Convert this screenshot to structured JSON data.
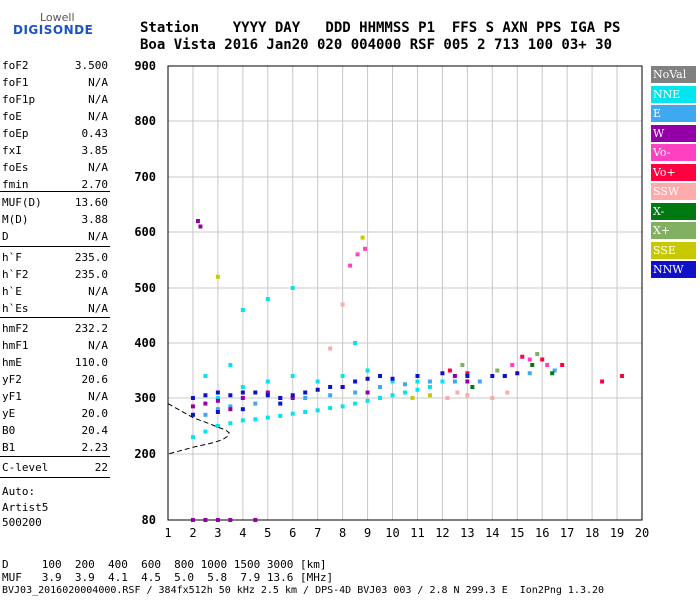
{
  "logo": {
    "top": "Lowell",
    "main": "DIGISONDE"
  },
  "header": {
    "line1": "Station    YYYY DAY   DDD HHMMSS P1  FFS S AXN PPS IGA PS",
    "line2": "Boa Vista 2016 Jan20 020 004000 RSF 005 2 713 100 03+ 30"
  },
  "params": [
    {
      "name": "foF2",
      "value": "3.500"
    },
    {
      "name": "foF1",
      "value": "N/A"
    },
    {
      "name": "foF1p",
      "value": "N/A"
    },
    {
      "name": "foE",
      "value": "N/A"
    },
    {
      "name": "foEp",
      "value": "0.43"
    },
    {
      "name": "fxI",
      "value": "3.85"
    },
    {
      "name": "foEs",
      "value": "N/A"
    },
    {
      "name": "fmin",
      "value": "2.70"
    },
    {
      "name": "MUF(D)",
      "value": "13.60"
    },
    {
      "name": "M(D)",
      "value": "3.88"
    },
    {
      "name": "D",
      "value": "N/A"
    },
    {
      "name": "h`F",
      "value": "235.0"
    },
    {
      "name": "h`F2",
      "value": "235.0"
    },
    {
      "name": "h`E",
      "value": "N/A"
    },
    {
      "name": "h`Es",
      "value": "N/A"
    },
    {
      "name": "hmF2",
      "value": "232.2"
    },
    {
      "name": "hmF1",
      "value": "N/A"
    },
    {
      "name": "hmE",
      "value": "110.0"
    },
    {
      "name": "yF2",
      "value": "20.6"
    },
    {
      "name": "yF1",
      "value": "N/A"
    },
    {
      "name": "yE",
      "value": "20.0"
    },
    {
      "name": "B0",
      "value": "20.4"
    },
    {
      "name": "B1",
      "value": "2.23"
    },
    {
      "name": "C-level",
      "value": "22"
    }
  ],
  "autoscaling": {
    "line1": "Auto:",
    "line2": "Artist5",
    "line3": "500200"
  },
  "muf_table": {
    "line1": "D     100  200  400  600  800 1000 1500 3000 [km]",
    "line2": "MUF   3.9  3.9  4.1  4.5  5.0  5.8  7.9 13.6 [MHz]"
  },
  "footer": "BVJ03_2016020004000.RSF / 384fx512h 50 kHz 2.5 km / DPS-4D BVJ03 003 / 2.8 N 299.3 E  Ion2Png 1.3.20",
  "legend": [
    {
      "label": "NoVal",
      "color": "#808080"
    },
    {
      "label": "NNE",
      "color": "#00e5ee"
    },
    {
      "label": "E",
      "color": "#3ea8f0"
    },
    {
      "label": "W",
      "color": "#9400a8"
    },
    {
      "label": "Vo-",
      "color": "#ff40c0"
    },
    {
      "label": "Vo+",
      "color": "#ff0040"
    },
    {
      "label": "SSW",
      "color": "#ffaaaa"
    },
    {
      "label": "X-",
      "color": "#007a10"
    },
    {
      "label": "X+",
      "color": "#80b060"
    },
    {
      "label": "SSE",
      "color": "#c8c800"
    },
    {
      "label": "NNW",
      "color": "#1010c8"
    }
  ],
  "chart_data": {
    "type": "scatter",
    "xlim": [
      1,
      20
    ],
    "ylim": [
      80,
      900
    ],
    "x_ticks": [
      "1",
      "2",
      "3",
      "4",
      "5",
      "6",
      "7",
      "8",
      "9",
      "10",
      "11",
      "12",
      "13",
      "14",
      "15",
      "16",
      "17",
      "18",
      "19",
      "20"
    ],
    "y_ticks": [
      "80",
      "200",
      "300",
      "400",
      "500",
      "600",
      "700",
      "800",
      "900"
    ],
    "grid": true,
    "series": [
      {
        "name": "NNE",
        "color": "#00e5ee",
        "points": [
          [
            2.0,
            230
          ],
          [
            2.5,
            240
          ],
          [
            3.0,
            250
          ],
          [
            3.5,
            255
          ],
          [
            4.0,
            260
          ],
          [
            4.5,
            262
          ],
          [
            5.0,
            265
          ],
          [
            5.5,
            268
          ],
          [
            6.0,
            272
          ],
          [
            6.5,
            275
          ],
          [
            7.0,
            278
          ],
          [
            7.5,
            282
          ],
          [
            8.0,
            285
          ],
          [
            8.5,
            290
          ],
          [
            9.0,
            295
          ],
          [
            9.5,
            300
          ],
          [
            10.0,
            305
          ],
          [
            10.5,
            310
          ],
          [
            11.0,
            315
          ],
          [
            11.5,
            320
          ],
          [
            3.0,
            300
          ],
          [
            4.0,
            320
          ],
          [
            5.0,
            330
          ],
          [
            6.0,
            340
          ],
          [
            7.0,
            330
          ],
          [
            8.0,
            340
          ],
          [
            9.0,
            350
          ],
          [
            10.0,
            330
          ],
          [
            11.0,
            330
          ],
          [
            12.0,
            330
          ],
          [
            4.0,
            460
          ],
          [
            5.0,
            480
          ],
          [
            6.0,
            500
          ],
          [
            2.5,
            340
          ],
          [
            3.5,
            360
          ],
          [
            8.5,
            400
          ]
        ]
      },
      {
        "name": "E",
        "color": "#3ea8f0",
        "points": [
          [
            2.5,
            270
          ],
          [
            3.0,
            280
          ],
          [
            3.5,
            285
          ],
          [
            4.5,
            290
          ],
          [
            5.5,
            300
          ],
          [
            6.5,
            300
          ],
          [
            7.5,
            305
          ],
          [
            8.5,
            310
          ],
          [
            9.5,
            320
          ],
          [
            10.5,
            325
          ],
          [
            11.5,
            330
          ],
          [
            12.5,
            330
          ],
          [
            13.5,
            330
          ],
          [
            14.5,
            340
          ],
          [
            15.5,
            345
          ],
          [
            16.5,
            350
          ]
        ]
      },
      {
        "name": "W",
        "color": "#9400a8",
        "points": [
          [
            2.0,
            285
          ],
          [
            2.5,
            290
          ],
          [
            3.0,
            295
          ],
          [
            3.5,
            280
          ],
          [
            4.0,
            300
          ],
          [
            5.0,
            310
          ],
          [
            6.0,
            300
          ],
          [
            8.0,
            320
          ],
          [
            9.0,
            310
          ],
          [
            12.5,
            340
          ],
          [
            13.0,
            330
          ],
          [
            2.2,
            620
          ],
          [
            2.3,
            610
          ],
          [
            2.0,
            80
          ],
          [
            2.5,
            80
          ],
          [
            3.0,
            80
          ],
          [
            3.5,
            80
          ],
          [
            4.5,
            80
          ]
        ]
      },
      {
        "name": "Vo-",
        "color": "#ff40c0",
        "points": [
          [
            8.3,
            540
          ],
          [
            8.6,
            560
          ],
          [
            8.9,
            570
          ],
          [
            14.8,
            360
          ],
          [
            15.5,
            370
          ],
          [
            16.2,
            360
          ]
        ]
      },
      {
        "name": "Vo+",
        "color": "#ff0040",
        "points": [
          [
            12.3,
            350
          ],
          [
            13.0,
            345
          ],
          [
            15.2,
            375
          ],
          [
            16.0,
            370
          ],
          [
            16.8,
            360
          ],
          [
            18.4,
            330
          ],
          [
            19.2,
            340
          ]
        ]
      },
      {
        "name": "SSW",
        "color": "#ffaaaa",
        "points": [
          [
            12.2,
            300
          ],
          [
            12.6,
            310
          ],
          [
            13.0,
            305
          ],
          [
            14.0,
            300
          ],
          [
            14.6,
            310
          ],
          [
            7.5,
            390
          ],
          [
            8.0,
            470
          ]
        ]
      },
      {
        "name": "X-",
        "color": "#007a10",
        "points": [
          [
            15.6,
            360
          ],
          [
            16.4,
            345
          ],
          [
            13.2,
            320
          ]
        ]
      },
      {
        "name": "X+",
        "color": "#80b060",
        "points": [
          [
            14.2,
            350
          ],
          [
            15.8,
            380
          ],
          [
            12.8,
            360
          ]
        ]
      },
      {
        "name": "SSE",
        "color": "#c8c800",
        "points": [
          [
            10.8,
            300
          ],
          [
            11.5,
            305
          ],
          [
            8.8,
            590
          ],
          [
            3.0,
            520
          ]
        ]
      },
      {
        "name": "NNW",
        "color": "#1010c8",
        "points": [
          [
            2.0,
            300
          ],
          [
            2.5,
            305
          ],
          [
            3.0,
            310
          ],
          [
            3.5,
            305
          ],
          [
            4.0,
            310
          ],
          [
            4.5,
            310
          ],
          [
            5.0,
            305
          ],
          [
            5.5,
            300
          ],
          [
            6.0,
            305
          ],
          [
            6.5,
            310
          ],
          [
            7.0,
            315
          ],
          [
            7.5,
            320
          ],
          [
            8.0,
            320
          ],
          [
            8.5,
            330
          ],
          [
            9.0,
            335
          ],
          [
            9.5,
            340
          ],
          [
            10.0,
            335
          ],
          [
            11.0,
            340
          ],
          [
            12.0,
            345
          ],
          [
            13.0,
            340
          ],
          [
            14.0,
            340
          ],
          [
            14.5,
            340
          ],
          [
            15.0,
            345
          ],
          [
            2.0,
            270
          ],
          [
            3.0,
            275
          ],
          [
            4.0,
            280
          ],
          [
            5.5,
            290
          ]
        ]
      }
    ],
    "trace": {
      "color": "#000000",
      "points": [
        [
          1.0,
          290
        ],
        [
          2.0,
          265
        ],
        [
          2.6,
          255
        ],
        [
          3.0,
          248
        ],
        [
          3.3,
          243
        ],
        [
          3.45,
          238
        ],
        [
          3.4,
          232
        ],
        [
          3.2,
          226
        ],
        [
          2.8,
          220
        ],
        [
          2.0,
          212
        ],
        [
          1.0,
          200
        ]
      ]
    }
  }
}
